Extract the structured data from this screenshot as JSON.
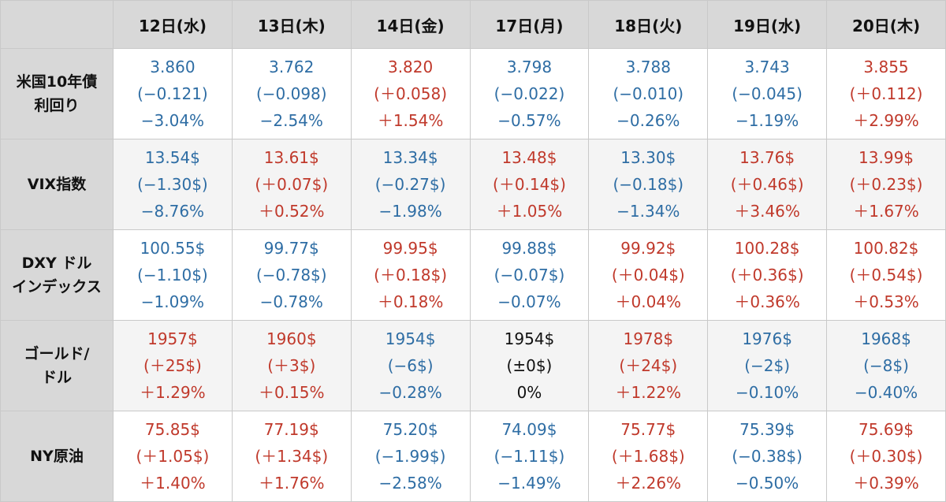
{
  "chart_data": {
    "type": "table",
    "columns": [
      "12日(水)",
      "13日(木)",
      "14日(金)",
      "17日(月)",
      "18日(火)",
      "19日(水)",
      "20日(木)"
    ],
    "colors": {
      "up": "#c0392b",
      "down": "#2e6da4",
      "flat": "#111111",
      "header_bg": "#d8d8d8"
    },
    "rows": [
      {
        "label_lines": [
          "米国10年債",
          "利回り"
        ],
        "cells": [
          {
            "dir": "down",
            "lines": [
              "3.860",
              "(−0.121)",
              "−3.04%"
            ]
          },
          {
            "dir": "down",
            "lines": [
              "3.762",
              "(−0.098)",
              "−2.54%"
            ]
          },
          {
            "dir": "up",
            "lines": [
              "3.820",
              "(＋0.058)",
              "＋1.54%"
            ]
          },
          {
            "dir": "down",
            "lines": [
              "3.798",
              "(−0.022)",
              "−0.57%"
            ]
          },
          {
            "dir": "down",
            "lines": [
              "3.788",
              "(−0.010)",
              "−0.26%"
            ]
          },
          {
            "dir": "down",
            "lines": [
              "3.743",
              "(−0.045)",
              "−1.19%"
            ]
          },
          {
            "dir": "up",
            "lines": [
              "3.855",
              "(＋0.112)",
              "＋2.99%"
            ]
          }
        ]
      },
      {
        "label_lines": [
          "VIX指数"
        ],
        "cells": [
          {
            "dir": "down",
            "lines": [
              "13.54$",
              "(−1.30$)",
              "−8.76%"
            ]
          },
          {
            "dir": "up",
            "lines": [
              "13.61$",
              "(＋0.07$)",
              "＋0.52%"
            ]
          },
          {
            "dir": "down",
            "lines": [
              "13.34$",
              "(−0.27$)",
              "−1.98%"
            ]
          },
          {
            "dir": "up",
            "lines": [
              "13.48$",
              "(＋0.14$)",
              "＋1.05%"
            ]
          },
          {
            "dir": "down",
            "lines": [
              "13.30$",
              "(−0.18$)",
              "−1.34%"
            ]
          },
          {
            "dir": "up",
            "lines": [
              "13.76$",
              "(＋0.46$)",
              "＋3.46%"
            ]
          },
          {
            "dir": "up",
            "lines": [
              "13.99$",
              "(＋0.23$)",
              "＋1.67%"
            ]
          }
        ]
      },
      {
        "label_lines": [
          "DXY ドル",
          "インデックス"
        ],
        "cells": [
          {
            "dir": "down",
            "lines": [
              "100.55$",
              "(−1.10$)",
              "−1.09%"
            ]
          },
          {
            "dir": "down",
            "lines": [
              "99.77$",
              "(−0.78$)",
              "−0.78%"
            ]
          },
          {
            "dir": "up",
            "lines": [
              "99.95$",
              "(＋0.18$)",
              "＋0.18%"
            ]
          },
          {
            "dir": "down",
            "lines": [
              "99.88$",
              "(−0.07$)",
              "−0.07%"
            ]
          },
          {
            "dir": "up",
            "lines": [
              "99.92$",
              "(＋0.04$)",
              "＋0.04%"
            ]
          },
          {
            "dir": "up",
            "lines": [
              "100.28$",
              "(＋0.36$)",
              "＋0.36%"
            ]
          },
          {
            "dir": "up",
            "lines": [
              "100.82$",
              "(＋0.54$)",
              "＋0.53%"
            ]
          }
        ]
      },
      {
        "label_lines": [
          "ゴールド/",
          "ドル"
        ],
        "cells": [
          {
            "dir": "up",
            "lines": [
              "1957$",
              "(＋25$)",
              "＋1.29%"
            ]
          },
          {
            "dir": "up",
            "lines": [
              "1960$",
              "(＋3$)",
              "＋0.15%"
            ]
          },
          {
            "dir": "down",
            "lines": [
              "1954$",
              "(−6$)",
              "−0.28%"
            ]
          },
          {
            "dir": "flat",
            "lines": [
              "1954$",
              "(±0$)",
              "0%"
            ]
          },
          {
            "dir": "up",
            "lines": [
              "1978$",
              "(＋24$)",
              "＋1.22%"
            ]
          },
          {
            "dir": "down",
            "lines": [
              "1976$",
              "(−2$)",
              "−0.10%"
            ]
          },
          {
            "dir": "down",
            "lines": [
              "1968$",
              "(−8$)",
              "−0.40%"
            ]
          }
        ]
      },
      {
        "label_lines": [
          "NY原油"
        ],
        "cells": [
          {
            "dir": "up",
            "lines": [
              "75.85$",
              "(＋1.05$)",
              "＋1.40%"
            ]
          },
          {
            "dir": "up",
            "lines": [
              "77.19$",
              "(＋1.34$)",
              "＋1.76%"
            ]
          },
          {
            "dir": "down",
            "lines": [
              "75.20$",
              "(−1.99$)",
              "−2.58%"
            ]
          },
          {
            "dir": "down",
            "lines": [
              "74.09$",
              "(−1.11$)",
              "−1.49%"
            ]
          },
          {
            "dir": "up",
            "lines": [
              "75.77$",
              "(＋1.68$)",
              "＋2.26%"
            ]
          },
          {
            "dir": "down",
            "lines": [
              "75.39$",
              "(−0.38$)",
              "−0.50%"
            ]
          },
          {
            "dir": "up",
            "lines": [
              "75.69$",
              "(＋0.30$)",
              "＋0.39%"
            ]
          }
        ]
      }
    ]
  }
}
